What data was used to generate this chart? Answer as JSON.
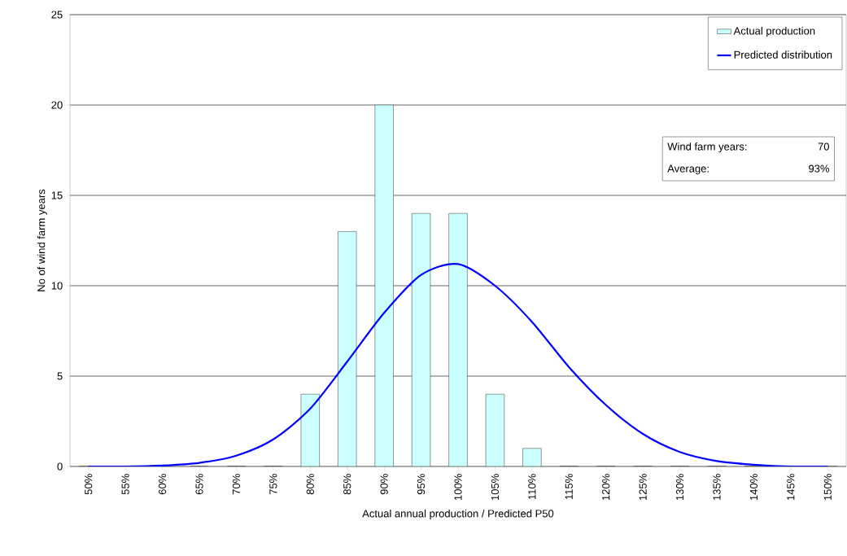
{
  "chart_data": {
    "type": "bar",
    "categories": [
      "50%",
      "55%",
      "60%",
      "65%",
      "70%",
      "75%",
      "80%",
      "85%",
      "90%",
      "95%",
      "100%",
      "105%",
      "110%",
      "115%",
      "120%",
      "125%",
      "130%",
      "135%",
      "140%",
      "145%",
      "150%"
    ],
    "series": [
      {
        "name": "Actual production",
        "color": "#ccffff",
        "values": [
          0,
          0,
          0,
          0,
          0,
          0,
          4,
          13,
          20,
          14,
          14,
          4,
          1,
          0,
          0,
          0,
          0,
          0,
          0,
          0,
          0
        ]
      },
      {
        "name": "Predicted distribution",
        "type": "line",
        "color": "#0000ff",
        "values": [
          0,
          0,
          0.05,
          0.2,
          0.6,
          1.5,
          3.2,
          5.8,
          8.5,
          10.6,
          11.2,
          10.0,
          8.0,
          5.5,
          3.4,
          1.8,
          0.8,
          0.3,
          0.1,
          0,
          0
        ]
      }
    ],
    "xlabel": "Actual annual production / Predicted P50",
    "ylabel": "No of wind farm years",
    "ylim": [
      0,
      25
    ],
    "yticks": [
      0,
      5,
      10,
      15,
      20,
      25
    ],
    "grid": "y",
    "legend": "top right",
    "annotations": [
      "Wind farm years:",
      "70",
      "Average:",
      "93%"
    ]
  }
}
